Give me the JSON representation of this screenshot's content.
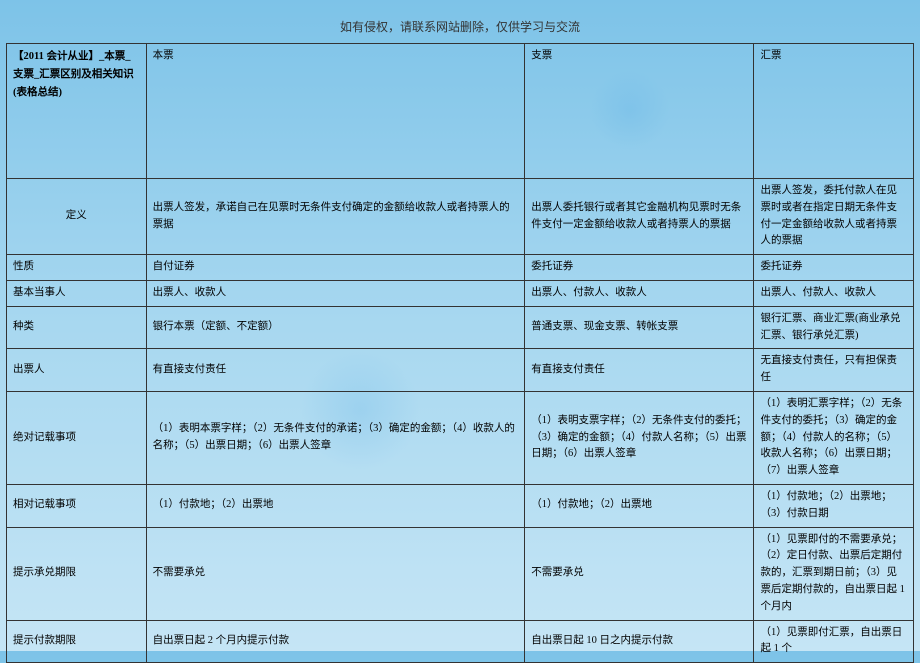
{
  "top_note": "如有侵权，请联系网站删除，仅供学习与交流",
  "table": {
    "title_cell": "【2011 会计从业】_本票_支票_汇票区别及相关知识(表格总结)",
    "columns": [
      "本票",
      "支票",
      "汇票"
    ],
    "rows": [
      {
        "label": "定义",
        "c1": "出票人签发，承诺自己在见票时无条件支付确定的金额给收款人或者持票人的票据",
        "c2": "出票人委托银行或者其它金融机构见票时无条件支付一定金额给收款人或者持票人的票据",
        "c3": "出票人签发，委托付款人在见票时或者在指定日期无条件支付一定金额给收款人或者持票人的票据"
      },
      {
        "label": "性质",
        "c1": "自付证券",
        "c2": "委托证券",
        "c3": "委托证券"
      },
      {
        "label": "基本当事人",
        "c1": "出票人、收款人",
        "c2": "出票人、付款人、收款人",
        "c3": "出票人、付款人、收款人"
      },
      {
        "label": "种类",
        "c1": "银行本票（定额、不定额）",
        "c2": "普通支票、现金支票、转帐支票",
        "c3": "银行汇票、商业汇票(商业承兑汇票、银行承兑汇票)"
      },
      {
        "label": "出票人",
        "c1": "有直接支付责任",
        "c2": "有直接支付责任",
        "c3": "无直接支付责任，只有担保责任"
      },
      {
        "label": "绝对记载事项",
        "c1": "（1）表明本票字样；（2）无条件支付的承诺；（3）确定的金额；（4）收款人的名称；（5）出票日期；（6）出票人签章",
        "c2": "（1）表明支票字样；（2）无条件支付的委托；（3）确定的金额；（4）付款人名称；（5）出票日期；（6）出票人签章",
        "c3": "（1）表明汇票字样；（2）无条件支付的委托；（3）确定的金额；（4）付款人的名称；（5）收款人名称；（6）出票日期；（7）出票人签章"
      },
      {
        "label": "相对记载事项",
        "c1": "（1）付款地；（2）出票地",
        "c2": "（1）付款地；（2）出票地",
        "c3": "（1）付款地；（2）出票地；（3）付款日期"
      },
      {
        "label": "提示承兑期限",
        "c1": "不需要承兑",
        "c2": "不需要承兑",
        "c3": "（1）见票即付的不需要承兑；（2）定日付款、出票后定期付款的，汇票到期日前；（3）见票后定期付款的，自出票日起 1 个月内"
      },
      {
        "label": "提示付款期限",
        "c1": "自出票日起 2 个月内提示付款",
        "c2": "自出票日起 10 日之内提示付款",
        "c3": "（1）见票即付汇票，自出票日起 1 个"
      }
    ]
  }
}
